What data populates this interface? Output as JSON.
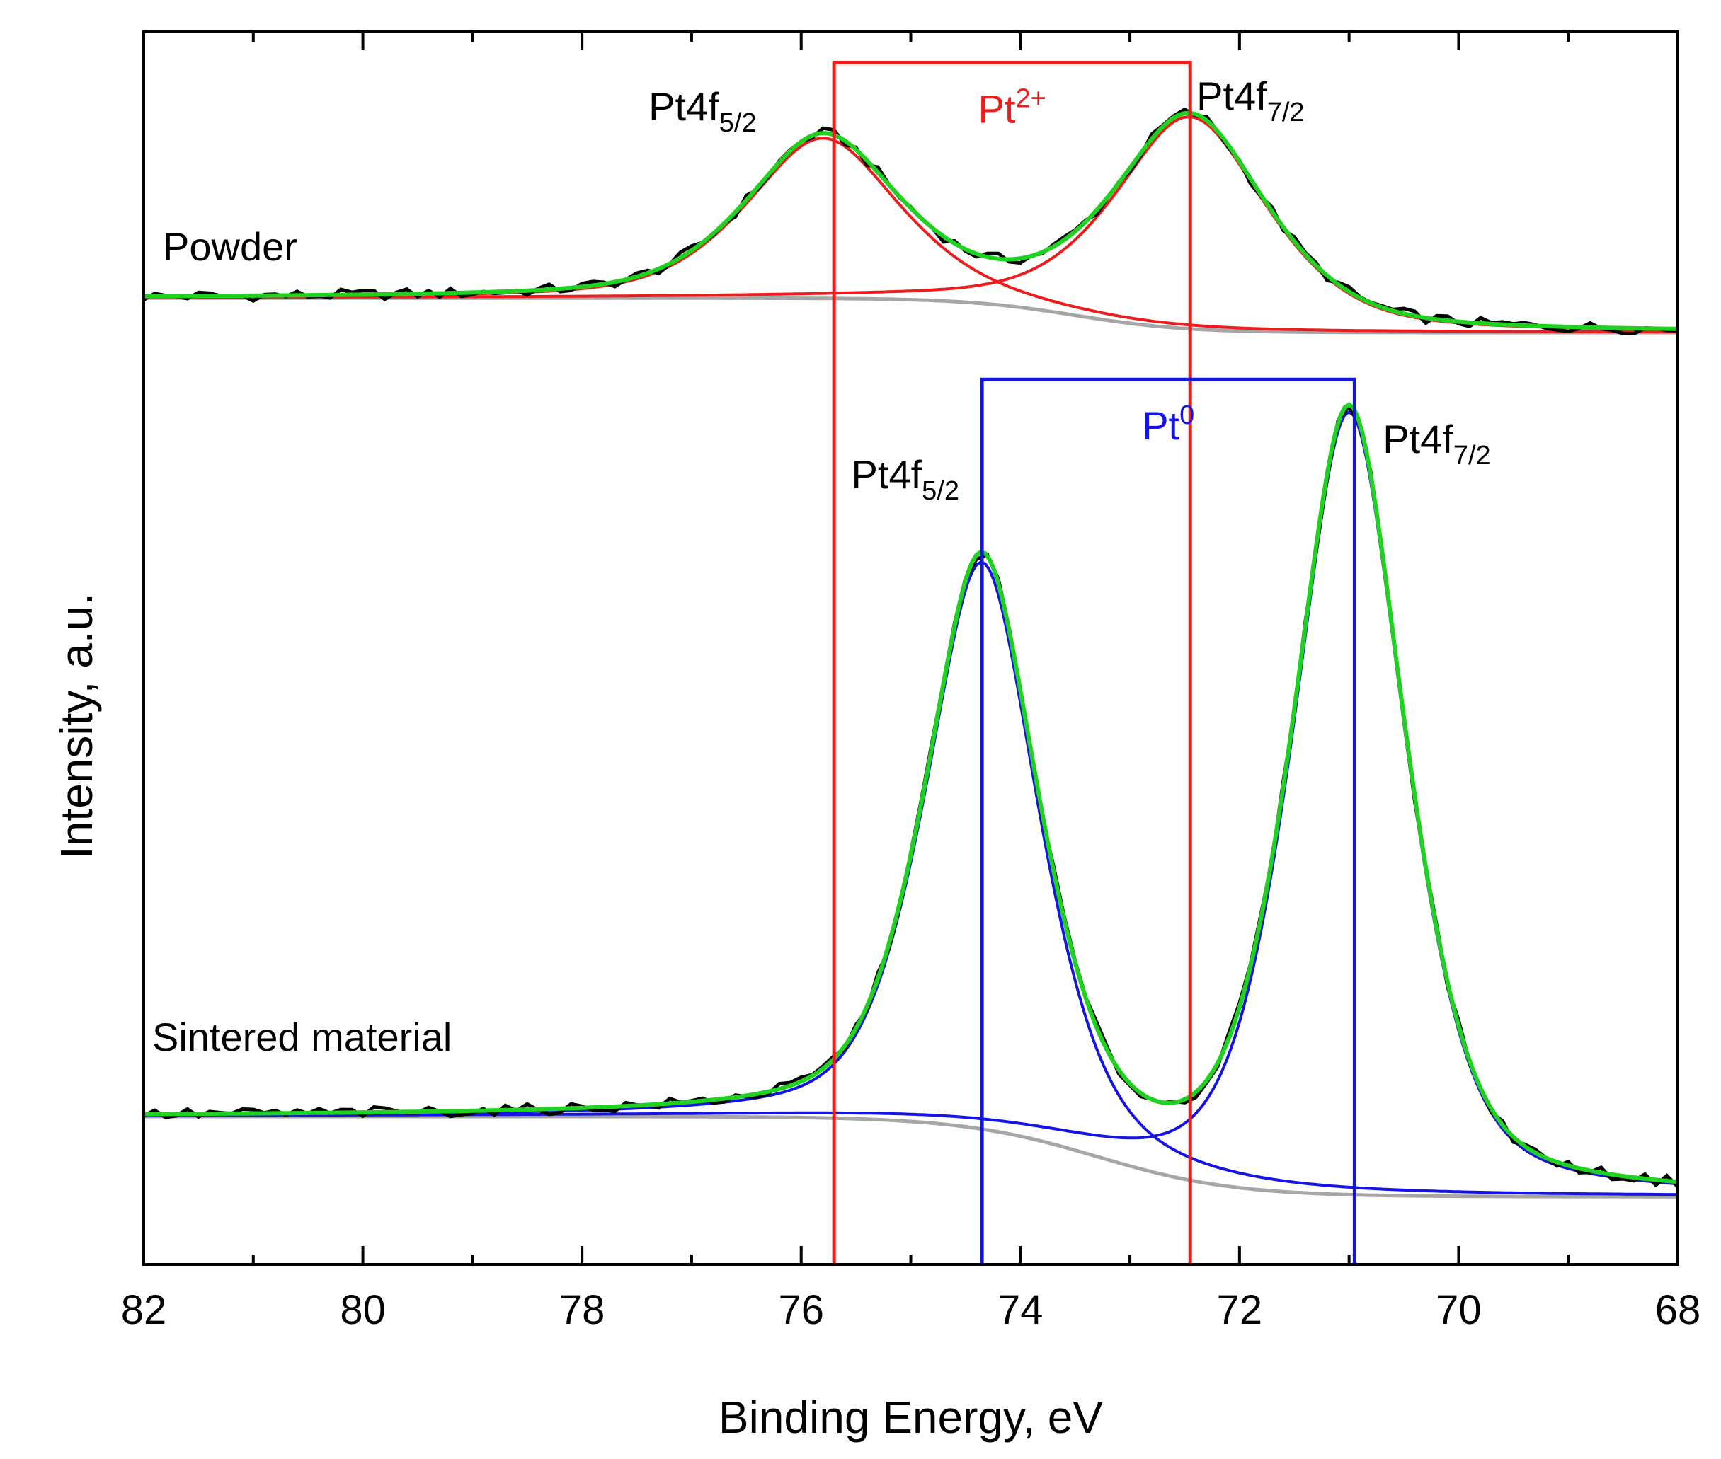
{
  "chart_data": {
    "type": "line",
    "title": "",
    "xlabel": "Binding Energy, eV",
    "ylabel": "Intensity, a.u.",
    "xlim": [
      82,
      68
    ],
    "ylim": [
      0,
      100
    ],
    "x_reversed": true,
    "x_major_ticks": [
      82,
      80,
      78,
      76,
      74,
      72,
      70,
      68
    ],
    "x_minor_step": 1,
    "y_tick_labels": false,
    "colors": {
      "raw": "#000000",
      "fit": "#1fd21f",
      "pt2": "#ee1c1c",
      "pt0": "#1414e6",
      "background": "#a6a6a6"
    },
    "panels": [
      {
        "name": "Powder",
        "label": "Powder",
        "baseline_start": 78.4,
        "baseline_end": 75.6,
        "baseline_step_center": 73.5,
        "baseline_step_width": 2.0,
        "components": [
          {
            "center": 75.8,
            "height": 13.0,
            "width": 0.75
          },
          {
            "center": 72.45,
            "height": 17.2,
            "width": 0.75
          }
        ],
        "peak_labels": [
          {
            "base": "Pt4f",
            "sub": "5/2",
            "x": 76.9
          },
          {
            "base": "Pt4f",
            "sub": "7/2",
            "x": 71.9
          }
        ]
      },
      {
        "name": "Sintered material",
        "label": "Sintered material",
        "baseline_start": 12.0,
        "baseline_end": 5.5,
        "baseline_step_center": 73.3,
        "baseline_step_width": 2.5,
        "components": [
          {
            "center": 74.35,
            "height": 46.0,
            "width": 0.55
          },
          {
            "center": 71.0,
            "height": 63.5,
            "width": 0.55
          }
        ],
        "peak_labels": [
          {
            "base": "Pt4f",
            "sub": "5/2",
            "x": 75.05
          },
          {
            "base": "Pt4f",
            "sub": "7/2",
            "x": 70.2
          }
        ]
      }
    ],
    "markers": [
      {
        "name": "Pt2+",
        "label_base": "Pt",
        "label_sup": "2+",
        "x1": 75.7,
        "x2": 72.45,
        "y_bracket": 97.5,
        "y_bottom": 0,
        "color": "#ee1c1c"
      },
      {
        "name": "Pt0",
        "label_base": "Pt",
        "label_sup": "0",
        "x1": 74.35,
        "x2": 70.95,
        "y_bracket": 71.8,
        "y_bottom": 0,
        "color": "#1414e6"
      }
    ]
  }
}
